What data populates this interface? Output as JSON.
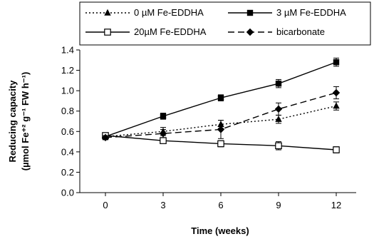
{
  "chart_data": {
    "type": "line",
    "xlabel": "Time (weeks)",
    "ylabel_line1": "Reducing capacity",
    "ylabel_line2": "(µmol Fe⁺² g⁻¹ FW h⁻¹)",
    "x": [
      0,
      3,
      6,
      9,
      12
    ],
    "x_tick_labels": [
      "0",
      "3",
      "6",
      "9",
      "12"
    ],
    "y_tick_labels": [
      "0.0",
      "0.2",
      "0.4",
      "0.6",
      "0.8",
      "1.0",
      "1.2",
      "1.4"
    ],
    "ylim": [
      0,
      1.4
    ],
    "grid": false,
    "legend_position": "top",
    "series": [
      {
        "name": "0 µM Fe-EDDHA",
        "values": [
          0.55,
          0.6,
          0.67,
          0.72,
          0.85
        ],
        "errors": [
          0.03,
          0.04,
          0.04,
          0.04,
          0.04
        ],
        "marker": "triangle",
        "line": "dotted",
        "color": "#000000"
      },
      {
        "name": "3 µM Fe-EDDHA",
        "values": [
          0.55,
          0.75,
          0.93,
          1.07,
          1.28
        ],
        "errors": [
          0.03,
          0.03,
          0.03,
          0.04,
          0.04
        ],
        "marker": "square-filled",
        "line": "solid",
        "color": "#000000"
      },
      {
        "name": "20µM Fe-EDDHA",
        "values": [
          0.56,
          0.51,
          0.48,
          0.46,
          0.42
        ],
        "errors": [
          0.02,
          0.02,
          0.03,
          0.04,
          0.03
        ],
        "marker": "square-open",
        "line": "solid",
        "color": "#000000"
      },
      {
        "name": "bicarbonate",
        "values": [
          0.54,
          0.58,
          0.62,
          0.82,
          0.98
        ],
        "errors": [
          0.02,
          0.04,
          0.09,
          0.06,
          0.06
        ],
        "marker": "diamond",
        "line": "dashed",
        "color": "#000000"
      }
    ]
  }
}
